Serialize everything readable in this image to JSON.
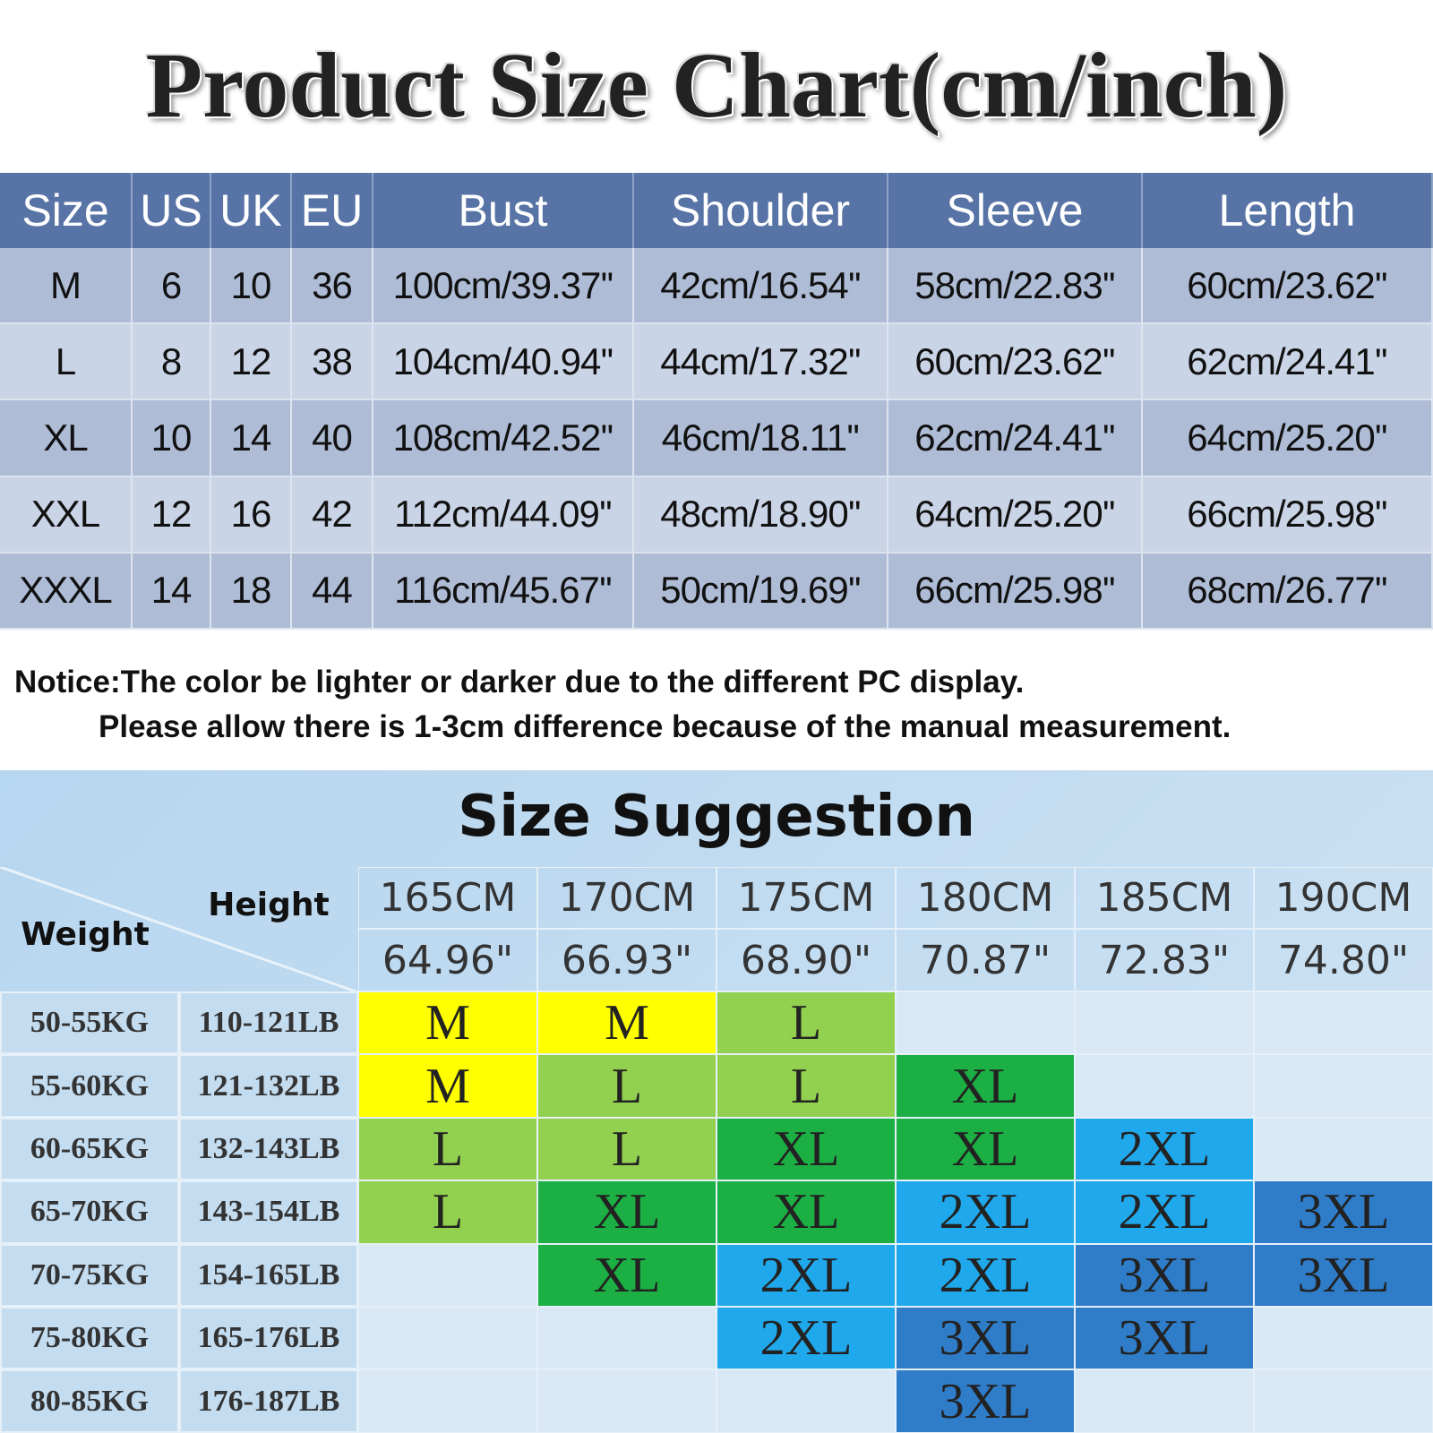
{
  "title": "Product Size Chart(cm/inch)",
  "size_table": {
    "header": [
      "Size",
      "US",
      "UK",
      "EU",
      "Bust",
      "Shoulder",
      "Sleeve",
      "Length"
    ],
    "rows": [
      [
        "M",
        "6",
        "10",
        "36",
        "100cm/39.37''",
        "42cm/16.54''",
        "58cm/22.83''",
        "60cm/23.62''"
      ],
      [
        "L",
        "8",
        "12",
        "38",
        "104cm/40.94''",
        "44cm/17.32''",
        "60cm/23.62''",
        "62cm/24.41''"
      ],
      [
        "XL",
        "10",
        "14",
        "40",
        "108cm/42.52''",
        "46cm/18.11''",
        "62cm/24.41''",
        "64cm/25.20''"
      ],
      [
        "XXL",
        "12",
        "16",
        "42",
        "112cm/44.09''",
        "48cm/18.90''",
        "64cm/25.20''",
        "66cm/25.98''"
      ],
      [
        "XXXL",
        "14",
        "18",
        "44",
        "116cm/45.67''",
        "50cm/19.69''",
        "66cm/25.98''",
        "68cm/26.77''"
      ]
    ]
  },
  "notice": [
    "Notice:The color be lighter or darker due to the different PC display.",
    "Please allow there is 1-3cm difference because of the manual measurement."
  ],
  "suggestion": {
    "title": "Size Suggestion",
    "height_label": "Height",
    "weight_label": "Weight",
    "heights_cm": [
      "165CM",
      "170CM",
      "175CM",
      "180CM",
      "185CM",
      "190CM"
    ],
    "heights_in": [
      "64.96\"",
      "66.93\"",
      "68.90\"",
      "70.87\"",
      "72.83\"",
      "74.80\""
    ],
    "rows": [
      {
        "kg": "50-55KG",
        "lb": "110-121LB",
        "cells": [
          {
            "label": "M",
            "color": "#ffff00"
          },
          {
            "label": "M",
            "color": "#ffff00"
          },
          {
            "label": "L",
            "color": "#92d050"
          },
          null,
          null,
          null
        ]
      },
      {
        "kg": "55-60KG",
        "lb": "121-132LB",
        "cells": [
          {
            "label": "M",
            "color": "#ffff00"
          },
          {
            "label": "L",
            "color": "#92d050"
          },
          {
            "label": "L",
            "color": "#92d050"
          },
          {
            "label": "XL",
            "color": "#1caf44"
          },
          null,
          null
        ]
      },
      {
        "kg": "60-65KG",
        "lb": "132-143LB",
        "cells": [
          {
            "label": "L",
            "color": "#92d050"
          },
          {
            "label": "L",
            "color": "#92d050"
          },
          {
            "label": "XL",
            "color": "#1caf44"
          },
          {
            "label": "XL",
            "color": "#1caf44"
          },
          {
            "label": "2XL",
            "color": "#20a8ec"
          },
          null
        ]
      },
      {
        "kg": "65-70KG",
        "lb": "143-154LB",
        "cells": [
          {
            "label": "L",
            "color": "#92d050"
          },
          {
            "label": "XL",
            "color": "#1caf44"
          },
          {
            "label": "XL",
            "color": "#1caf44"
          },
          {
            "label": "2XL",
            "color": "#20a8ec"
          },
          {
            "label": "2XL",
            "color": "#20a8ec"
          },
          {
            "label": "3XL",
            "color": "#2f7cc8"
          }
        ]
      },
      {
        "kg": "70-75KG",
        "lb": "154-165LB",
        "cells": [
          null,
          {
            "label": "XL",
            "color": "#1caf44"
          },
          {
            "label": "2XL",
            "color": "#20a8ec"
          },
          {
            "label": "2XL",
            "color": "#20a8ec"
          },
          {
            "label": "3XL",
            "color": "#2f7cc8"
          },
          {
            "label": "3XL",
            "color": "#2f7cc8"
          }
        ]
      },
      {
        "kg": "75-80KG",
        "lb": "165-176LB",
        "cells": [
          null,
          null,
          {
            "label": "2XL",
            "color": "#20a8ec"
          },
          {
            "label": "3XL",
            "color": "#2f7cc8"
          },
          {
            "label": "3XL",
            "color": "#2f7cc8"
          },
          null
        ]
      },
      {
        "kg": "80-85KG",
        "lb": "176-187LB",
        "cells": [
          null,
          null,
          null,
          {
            "label": "3XL",
            "color": "#2f7cc8"
          },
          null,
          null
        ]
      }
    ]
  }
}
